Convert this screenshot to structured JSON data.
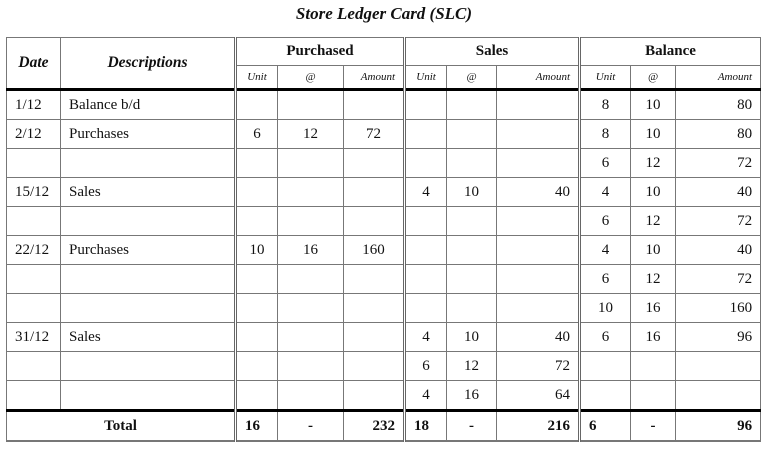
{
  "title": "Store Ledger Card (SLC)",
  "headers": {
    "date": "Date",
    "descriptions": "Descriptions",
    "purchased": "Purchased",
    "sales": "Sales",
    "balance": "Balance",
    "unit": "Unit",
    "at": "@",
    "amount": "Amount"
  },
  "rows": [
    [
      "1/12",
      "Balance b/d",
      "",
      "",
      "",
      "",
      "",
      "",
      "8",
      "10",
      "80"
    ],
    [
      "2/12",
      "Purchases",
      "6",
      "12",
      "72",
      "",
      "",
      "",
      "8",
      "10",
      "80"
    ],
    [
      "",
      "",
      "",
      "",
      "",
      "",
      "",
      "",
      "6",
      "12",
      "72"
    ],
    [
      "15/12",
      "Sales",
      "",
      "",
      "",
      "4",
      "10",
      "40",
      "4",
      "10",
      "40"
    ],
    [
      "",
      "",
      "",
      "",
      "",
      "",
      "",
      "",
      "6",
      "12",
      "72"
    ],
    [
      "22/12",
      "Purchases",
      "10",
      "16",
      "160",
      "",
      "",
      "",
      "4",
      "10",
      "40"
    ],
    [
      "",
      "",
      "",
      "",
      "",
      "",
      "",
      "",
      "6",
      "12",
      "72"
    ],
    [
      "",
      "",
      "",
      "",
      "",
      "",
      "",
      "",
      "10",
      "16",
      "160"
    ],
    [
      "31/12",
      "Sales",
      "",
      "",
      "",
      "4",
      "10",
      "40",
      "6",
      "16",
      "96"
    ],
    [
      "",
      "",
      "",
      "",
      "",
      "6",
      "12",
      "72",
      "",
      "",
      ""
    ],
    [
      "",
      "",
      "",
      "",
      "",
      "4",
      "16",
      "64",
      "",
      "",
      ""
    ]
  ],
  "total": {
    "label": "Total",
    "values": [
      "16",
      "-",
      "232",
      "18",
      "-",
      "216",
      "6",
      "-",
      "96"
    ]
  }
}
